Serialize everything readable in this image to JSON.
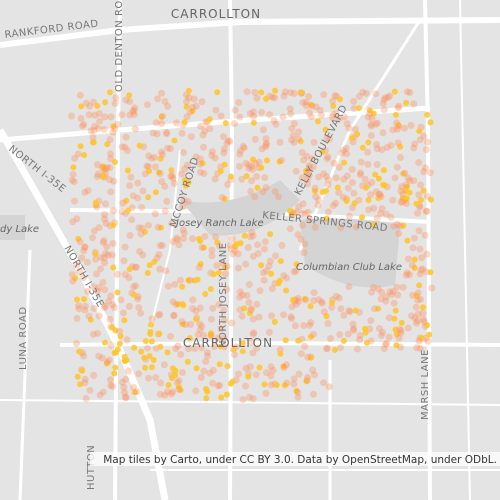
{
  "labels": [
    "CARROLLTON",
    "RANKFORD ROAD",
    "OLD DENTON ROAD",
    "NORTH I-35E",
    "dy Lake",
    "Josey Ranch Lake",
    "KELLER SPRINGS ROAD",
    "KELLY BOULEVARD",
    "Columbian Club Lake",
    "NORTH JOSEY LANE",
    "NORTH I-35E",
    "LUNA ROAD",
    "CARROLLTON",
    "MARSH LANE",
    "HUTTON",
    "MCCOY ROAD"
  ],
  "attribution": "Map tiles by Carto, under CC BY 3.0. Data by OpenStreetMap, under ODbL."
}
